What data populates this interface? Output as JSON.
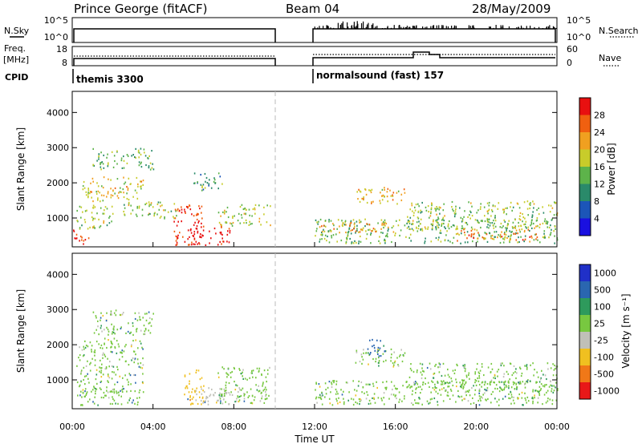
{
  "header": {
    "station": "Prince George (fitACF)",
    "beam": "Beam 04",
    "date": "28/May/2009"
  },
  "sky_panel": {
    "left_label": "N.Sky",
    "right_label": "N.Search",
    "left_ticks": [
      "10^5",
      "10^0"
    ],
    "right_ticks": [
      "10^5",
      "10^0"
    ]
  },
  "freq_panel": {
    "left_label": "Freq.",
    "left_unit": "[MHz]",
    "left_ticks": [
      "18",
      "8"
    ],
    "right_label": "Nave",
    "right_ticks": [
      "60",
      "0"
    ]
  },
  "cpid_panel": {
    "label": "CPID",
    "segments": [
      {
        "text": "themis 3300",
        "start_h": 0,
        "end_h": 10
      },
      {
        "text": "normalsound (fast) 157",
        "start_h": 12,
        "end_h": 24
      }
    ]
  },
  "x_axis": {
    "label": "Time UT",
    "tick_labels": [
      "00:00",
      "04:00",
      "08:00",
      "12:00",
      "16:00",
      "20:00",
      "00:00"
    ],
    "range_h": [
      0,
      24
    ]
  },
  "power_plot": {
    "ylabel": "Slant Range [km]",
    "y_ticks": [
      "1000",
      "2000",
      "3000",
      "4000"
    ],
    "colorbar_label": "Power [dB]",
    "colorbar_ticks": [
      "4",
      "8",
      "12",
      "16",
      "20",
      "24",
      "28"
    ],
    "colors": [
      "#1a10e0",
      "#1c55b8",
      "#2a8a6a",
      "#5db34a",
      "#c8cc2a",
      "#f0a020",
      "#f06010",
      "#e81010"
    ]
  },
  "velocity_plot": {
    "ylabel": "Slant Range [km]",
    "y_ticks": [
      "1000",
      "2000",
      "3000",
      "4000"
    ],
    "colorbar_label": "Velocity [m s⁻¹]",
    "colorbar_ticks": [
      "1000",
      "500",
      "100",
      "25",
      "-25",
      "-100",
      "-500",
      "-1000"
    ],
    "colors": [
      "#2030c8",
      "#2a66b0",
      "#2e9a5c",
      "#78c840",
      "#c0c0b8",
      "#f0c020",
      "#f07818",
      "#e81818"
    ]
  },
  "chart_data": {
    "type": "heatmap",
    "x_unit": "hours UT",
    "y_unit": "km",
    "x_range": [
      0,
      24
    ],
    "y_range": [
      180,
      4600
    ],
    "data_gap_h": [
      10,
      12
    ],
    "power_regions": [
      {
        "t0": 0.0,
        "t1": 0.8,
        "r0": 250,
        "r1": 700,
        "db": 28
      },
      {
        "t0": 0.2,
        "t1": 2.0,
        "r0": 700,
        "r1": 1400,
        "db": 14
      },
      {
        "t0": 0.5,
        "t1": 3.5,
        "r0": 1500,
        "r1": 2200,
        "db": 18
      },
      {
        "t0": 1.0,
        "t1": 4.0,
        "r0": 2400,
        "r1": 3000,
        "db": 12
      },
      {
        "t0": 2.5,
        "t1": 5.2,
        "r0": 1000,
        "r1": 1500,
        "db": 14
      },
      {
        "t0": 5.0,
        "t1": 6.5,
        "r0": 250,
        "r1": 1400,
        "db": 27
      },
      {
        "t0": 5.8,
        "t1": 7.8,
        "r0": 250,
        "r1": 800,
        "db": 30
      },
      {
        "t0": 6.0,
        "t1": 7.5,
        "r0": 1800,
        "r1": 2300,
        "db": 10
      },
      {
        "t0": 7.2,
        "t1": 9.8,
        "r0": 800,
        "r1": 1400,
        "db": 15
      },
      {
        "t0": 12.0,
        "t1": 24.0,
        "r0": 300,
        "r1": 1000,
        "db": 12
      },
      {
        "t0": 12.2,
        "t1": 16.0,
        "r0": 600,
        "r1": 900,
        "db": 20
      },
      {
        "t0": 14.0,
        "t1": 16.5,
        "r0": 1400,
        "r1": 1900,
        "db": 18
      },
      {
        "t0": 16.5,
        "t1": 24.0,
        "r0": 700,
        "r1": 1500,
        "db": 14
      },
      {
        "t0": 19.0,
        "t1": 23.0,
        "r0": 350,
        "r1": 700,
        "db": 22
      }
    ],
    "velocity_regions": [
      {
        "t0": 0.2,
        "t1": 3.5,
        "r0": 300,
        "r1": 2200,
        "v": 0
      },
      {
        "t0": 1.0,
        "t1": 4.0,
        "r0": 2300,
        "r1": 3000,
        "v": 0
      },
      {
        "t0": 5.5,
        "t1": 6.5,
        "r0": 300,
        "r1": 1300,
        "v": -220
      },
      {
        "t0": 6.0,
        "t1": 8.5,
        "r0": 300,
        "r1": 800,
        "v": -60
      },
      {
        "t0": 7.2,
        "t1": 9.8,
        "r0": 300,
        "r1": 1400,
        "v": 0
      },
      {
        "t0": 12.0,
        "t1": 24.0,
        "r0": 300,
        "r1": 1000,
        "v": 0
      },
      {
        "t0": 14.0,
        "t1": 16.5,
        "r0": 1400,
        "r1": 1900,
        "v": 0
      },
      {
        "t0": 14.5,
        "t1": 15.5,
        "r0": 1700,
        "r1": 2200,
        "v": 400
      },
      {
        "t0": 16.5,
        "t1": 24.0,
        "r0": 700,
        "r1": 1500,
        "v": 0
      }
    ]
  }
}
